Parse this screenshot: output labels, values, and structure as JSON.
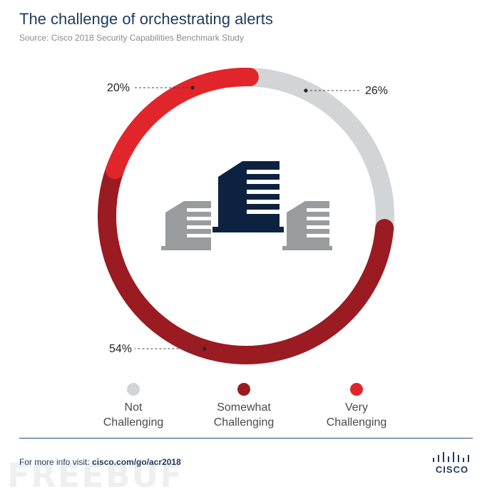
{
  "header": {
    "title": "The challenge of orchestrating alerts",
    "subtitle": "Source: Cisco 2018 Security Capabilities Benchmark Study"
  },
  "chart_data": {
    "type": "pie",
    "donut": true,
    "categories": [
      "Not Challenging",
      "Somewhat Challenging",
      "Very Challenging"
    ],
    "values": [
      26,
      54,
      20
    ],
    "labels": [
      "26%",
      "54%",
      "20%"
    ],
    "colors": [
      "#d3d4d6",
      "#9b1b22",
      "#e1262b"
    ],
    "legend_placement": "bottom"
  },
  "legend": {
    "items": [
      {
        "line1": "Not",
        "line2": "Challenging",
        "color": "#d3d4d6"
      },
      {
        "line1": "Somewhat",
        "line2": "Challenging",
        "color": "#9b1b22"
      },
      {
        "line1": "Very",
        "line2": "Challenging",
        "color": "#e1262b"
      }
    ]
  },
  "center_icon": "office-buildings-icon",
  "footer": {
    "prefix": "For more info visit: ",
    "link": "cisco.com/go/acr2018",
    "logo_text": "CISCO",
    "watermark": "FREEBUF"
  }
}
